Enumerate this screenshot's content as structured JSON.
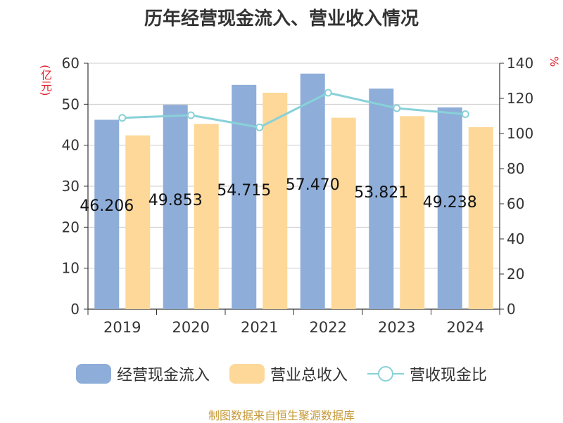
{
  "chart_data": {
    "type": "bar",
    "title": "历年经营现金流入、营业收入情况",
    "left_unit": "(亿元)",
    "right_unit": "%",
    "categories": [
      "2019",
      "2020",
      "2021",
      "2022",
      "2023",
      "2024"
    ],
    "series": [
      {
        "name": "经营现金流入",
        "type": "bar",
        "axis": "left",
        "color": "#8eadd9",
        "values": [
          46.206,
          49.853,
          54.715,
          57.47,
          53.821,
          49.238
        ]
      },
      {
        "name": "营业总收入",
        "type": "bar",
        "axis": "left",
        "color": "#fdd899",
        "values": [
          42.4,
          45.2,
          52.8,
          46.7,
          47.1,
          44.4
        ]
      },
      {
        "name": "营收现金比",
        "type": "line",
        "axis": "right",
        "color": "#88d1d8",
        "values": [
          108.9,
          110.4,
          103.5,
          123.2,
          114.4,
          111.0
        ]
      }
    ],
    "bar_labels": [
      "46.206",
      "49.853",
      "54.715",
      "57.470",
      "53.821",
      "49.238"
    ],
    "yleft": {
      "min": 0,
      "max": 60,
      "ticks": [
        0,
        10,
        20,
        30,
        40,
        50,
        60
      ]
    },
    "yright": {
      "min": 0,
      "max": 140,
      "ticks": [
        0,
        20,
        40,
        60,
        80,
        100,
        120,
        140
      ]
    },
    "grid": true,
    "legend_position": "bottom"
  },
  "source_text": "制图数据来自恒生聚源数据库"
}
